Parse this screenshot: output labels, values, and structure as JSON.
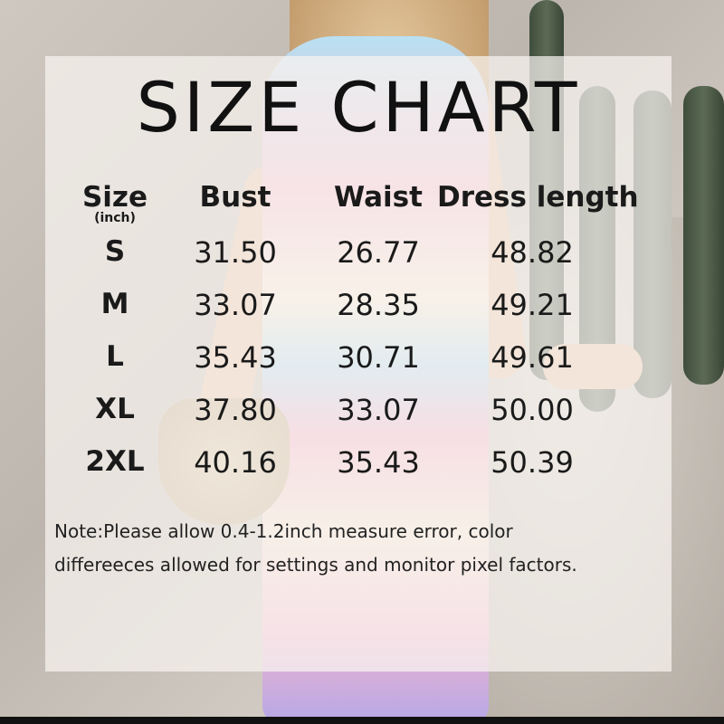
{
  "title": "SIZE CHART",
  "table": {
    "headers": [
      "Size",
      "Bust",
      "Waist",
      "Dress length"
    ],
    "size_unit": "(inch)",
    "rows": [
      [
        "S",
        "31.50",
        "26.77",
        "48.82"
      ],
      [
        "M",
        "33.07",
        "28.35",
        "49.21"
      ],
      [
        "L",
        "35.43",
        "30.71",
        "49.61"
      ],
      [
        "XL",
        "37.80",
        "33.07",
        "50.00"
      ],
      [
        "2XL",
        "40.16",
        "35.43",
        "50.39"
      ]
    ]
  },
  "note": {
    "line1": "Note:Please allow 0.4-1.2inch measure error, color",
    "line2": "differeeces allowed for settings and monitor pixel factors."
  }
}
